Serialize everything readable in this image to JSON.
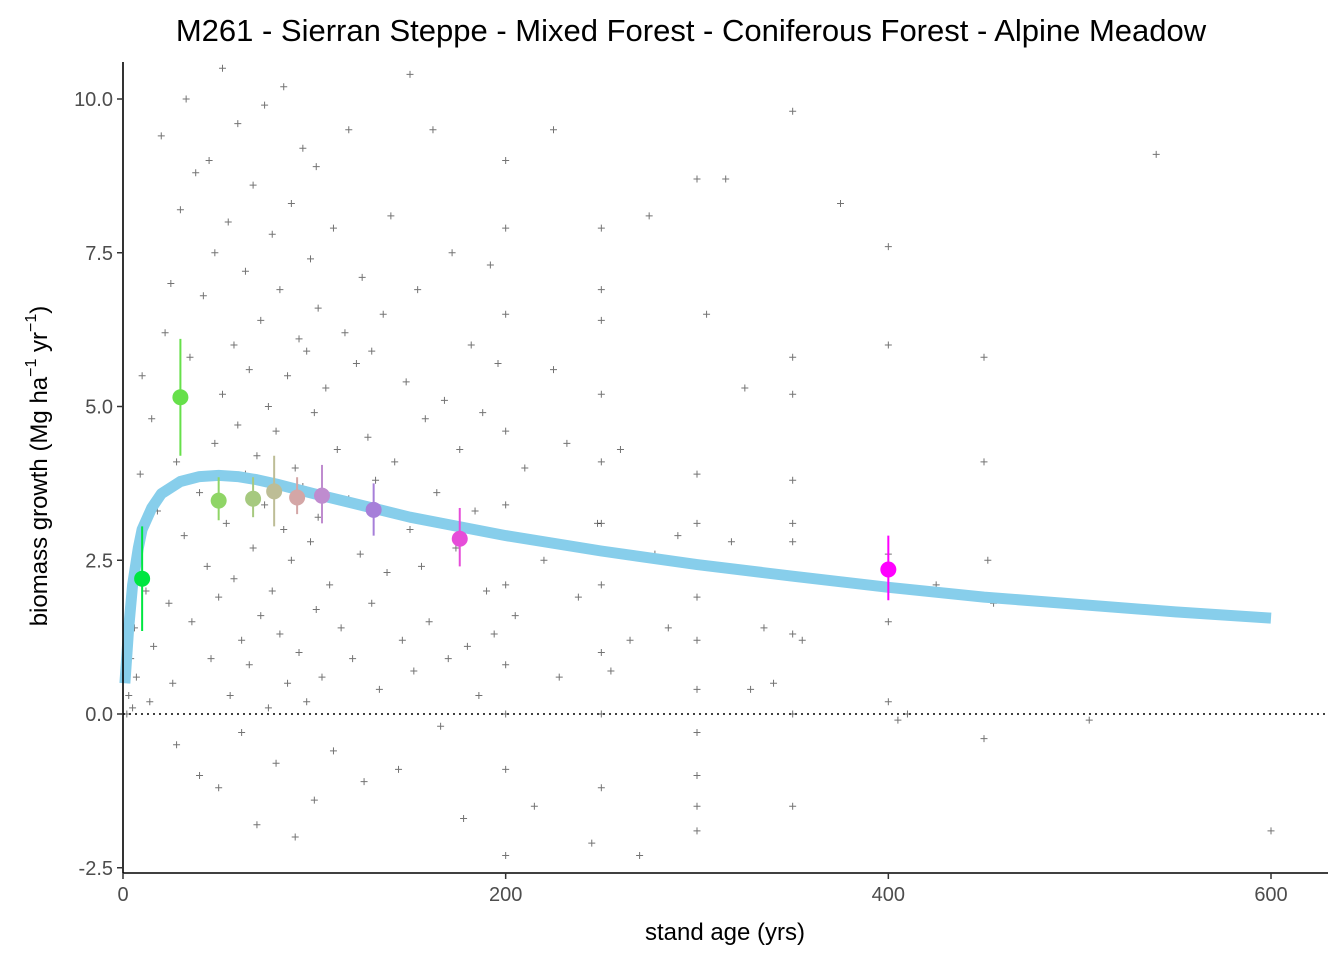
{
  "chart_data": {
    "type": "scatter",
    "title": "M261 - Sierran Steppe - Mixed Forest - Coniferous Forest - Alpine Meadow",
    "xlabel": "stand age (yrs)",
    "ylabel": {
      "main": "biomass growth (Mg ha",
      "sup1": "−1",
      "mid": " yr",
      "sup2": "−1",
      "end": ")"
    },
    "xlim": [
      0,
      630
    ],
    "ylim": [
      -2.6,
      10.6
    ],
    "x_ticks": [
      0,
      200,
      400,
      600
    ],
    "x_tick_labels": [
      "0",
      "200",
      "400",
      "600"
    ],
    "y_ticks": [
      -2.5,
      0,
      2.5,
      5,
      7.5,
      10
    ],
    "y_tick_labels": [
      "-2.5",
      "0.0",
      "2.5",
      "5.0",
      "7.5",
      "10.0"
    ],
    "grid": false,
    "reference_line": {
      "y": 0,
      "style": "dotted",
      "color": "#000000"
    },
    "fitted_curve": {
      "color": "#87ceeb",
      "points": [
        [
          1,
          0.5
        ],
        [
          3,
          1.4
        ],
        [
          5,
          2.1
        ],
        [
          8,
          2.7
        ],
        [
          10,
          3.0
        ],
        [
          15,
          3.35
        ],
        [
          20,
          3.58
        ],
        [
          30,
          3.78
        ],
        [
          40,
          3.86
        ],
        [
          50,
          3.88
        ],
        [
          60,
          3.86
        ],
        [
          70,
          3.81
        ],
        [
          80,
          3.74
        ],
        [
          100,
          3.58
        ],
        [
          120,
          3.43
        ],
        [
          150,
          3.2
        ],
        [
          200,
          2.9
        ],
        [
          250,
          2.65
        ],
        [
          300,
          2.43
        ],
        [
          350,
          2.24
        ],
        [
          400,
          2.06
        ],
        [
          450,
          1.9
        ],
        [
          500,
          1.78
        ],
        [
          550,
          1.66
        ],
        [
          600,
          1.56
        ]
      ]
    },
    "binned_means": [
      {
        "x": 10,
        "y": 2.2,
        "ylo": 1.35,
        "yhi": 3.05,
        "color": "#00e640"
      },
      {
        "x": 30,
        "y": 5.15,
        "ylo": 4.2,
        "yhi": 6.1,
        "color": "#66e04a"
      },
      {
        "x": 50,
        "y": 3.47,
        "ylo": 3.15,
        "yhi": 3.85,
        "color": "#8fd566"
      },
      {
        "x": 68,
        "y": 3.5,
        "ylo": 3.2,
        "yhi": 3.85,
        "color": "#a6c97f"
      },
      {
        "x": 79,
        "y": 3.62,
        "ylo": 3.05,
        "yhi": 4.2,
        "color": "#bdbd96"
      },
      {
        "x": 91,
        "y": 3.52,
        "ylo": 3.25,
        "yhi": 3.85,
        "color": "#d4a6a6"
      },
      {
        "x": 104,
        "y": 3.55,
        "ylo": 3.1,
        "yhi": 4.05,
        "color": "#bf8ccf"
      },
      {
        "x": 131,
        "y": 3.32,
        "ylo": 2.9,
        "yhi": 3.75,
        "color": "#a67fd9"
      },
      {
        "x": 176,
        "y": 2.85,
        "ylo": 2.4,
        "yhi": 3.35,
        "color": "#e64dd9"
      },
      {
        "x": 400,
        "y": 2.35,
        "ylo": 1.85,
        "yhi": 2.9,
        "color": "#ff00ff"
      }
    ],
    "raw_points_note": "",
    "raw_points": [
      [
        2,
        0.0
      ],
      [
        3,
        0.3
      ],
      [
        4,
        0.9
      ],
      [
        5,
        0.1
      ],
      [
        6,
        1.4
      ],
      [
        7,
        0.6
      ],
      [
        8,
        2.5
      ],
      [
        9,
        3.9
      ],
      [
        10,
        5.5
      ],
      [
        12,
        2.0
      ],
      [
        14,
        0.2
      ],
      [
        15,
        4.8
      ],
      [
        16,
        1.1
      ],
      [
        18,
        3.3
      ],
      [
        20,
        9.4
      ],
      [
        22,
        6.2
      ],
      [
        24,
        1.8
      ],
      [
        25,
        7.0
      ],
      [
        26,
        0.5
      ],
      [
        28,
        4.1
      ],
      [
        28,
        -0.5
      ],
      [
        30,
        8.2
      ],
      [
        32,
        2.9
      ],
      [
        33,
        10.0
      ],
      [
        35,
        5.8
      ],
      [
        36,
        1.5
      ],
      [
        38,
        8.8
      ],
      [
        40,
        3.6
      ],
      [
        40,
        -1.0
      ],
      [
        42,
        6.8
      ],
      [
        44,
        2.4
      ],
      [
        45,
        9.0
      ],
      [
        46,
        0.9
      ],
      [
        48,
        4.4
      ],
      [
        48,
        7.5
      ],
      [
        50,
        1.9
      ],
      [
        50,
        -1.2
      ],
      [
        52,
        5.2
      ],
      [
        52,
        10.5
      ],
      [
        54,
        3.1
      ],
      [
        55,
        8.0
      ],
      [
        56,
        0.3
      ],
      [
        58,
        6.0
      ],
      [
        58,
        2.2
      ],
      [
        60,
        4.7
      ],
      [
        60,
        9.6
      ],
      [
        62,
        1.2
      ],
      [
        62,
        -0.3
      ],
      [
        64,
        7.2
      ],
      [
        64,
        3.9
      ],
      [
        66,
        5.6
      ],
      [
        66,
        0.8
      ],
      [
        68,
        2.7
      ],
      [
        68,
        8.6
      ],
      [
        70,
        4.2
      ],
      [
        70,
        -1.8
      ],
      [
        72,
        6.4
      ],
      [
        72,
        1.6
      ],
      [
        74,
        3.4
      ],
      [
        74,
        9.9
      ],
      [
        76,
        5.0
      ],
      [
        76,
        0.1
      ],
      [
        78,
        7.8
      ],
      [
        78,
        2.0
      ],
      [
        80,
        4.6
      ],
      [
        80,
        -0.8
      ],
      [
        82,
        6.9
      ],
      [
        82,
        1.3
      ],
      [
        84,
        3.0
      ],
      [
        84,
        10.2
      ],
      [
        86,
        5.5
      ],
      [
        86,
        0.5
      ],
      [
        88,
        8.3
      ],
      [
        88,
        2.5
      ],
      [
        90,
        4.0
      ],
      [
        90,
        -2.0
      ],
      [
        92,
        6.1
      ],
      [
        92,
        1.0
      ],
      [
        94,
        3.7
      ],
      [
        94,
        9.2
      ],
      [
        96,
        5.9
      ],
      [
        96,
        0.2
      ],
      [
        98,
        7.4
      ],
      [
        98,
        2.8
      ],
      [
        100,
        4.9
      ],
      [
        100,
        -1.4
      ],
      [
        101,
        1.7
      ],
      [
        101,
        8.9
      ],
      [
        102,
        3.2
      ],
      [
        102,
        6.6
      ],
      [
        104,
        0.6
      ],
      [
        106,
        5.3
      ],
      [
        108,
        2.1
      ],
      [
        110,
        7.9
      ],
      [
        110,
        -0.6
      ],
      [
        112,
        4.3
      ],
      [
        114,
        1.4
      ],
      [
        116,
        6.2
      ],
      [
        118,
        3.5
      ],
      [
        118,
        9.5
      ],
      [
        120,
        0.9
      ],
      [
        122,
        5.7
      ],
      [
        124,
        2.6
      ],
      [
        125,
        7.1
      ],
      [
        126,
        -1.1
      ],
      [
        128,
        4.5
      ],
      [
        130,
        1.8
      ],
      [
        130,
        5.9
      ],
      [
        132,
        3.8
      ],
      [
        134,
        0.4
      ],
      [
        136,
        6.5
      ],
      [
        138,
        2.3
      ],
      [
        140,
        8.1
      ],
      [
        142,
        4.1
      ],
      [
        144,
        -0.9
      ],
      [
        146,
        1.2
      ],
      [
        148,
        5.4
      ],
      [
        150,
        10.4
      ],
      [
        150,
        3.0
      ],
      [
        152,
        0.7
      ],
      [
        154,
        6.9
      ],
      [
        156,
        2.4
      ],
      [
        158,
        4.8
      ],
      [
        160,
        1.5
      ],
      [
        162,
        9.5
      ],
      [
        164,
        3.6
      ],
      [
        166,
        -0.2
      ],
      [
        168,
        5.1
      ],
      [
        170,
        0.9
      ],
      [
        172,
        7.5
      ],
      [
        174,
        2.7
      ],
      [
        176,
        4.3
      ],
      [
        178,
        -1.7
      ],
      [
        180,
        1.1
      ],
      [
        182,
        6.0
      ],
      [
        184,
        3.3
      ],
      [
        186,
        0.3
      ],
      [
        188,
        4.9
      ],
      [
        190,
        2.0
      ],
      [
        192,
        7.3
      ],
      [
        194,
        1.3
      ],
      [
        196,
        5.7
      ],
      [
        198,
        2.9
      ],
      [
        200,
        9.0
      ],
      [
        200,
        7.9
      ],
      [
        200,
        6.5
      ],
      [
        200,
        4.6
      ],
      [
        200,
        3.4
      ],
      [
        200,
        2.1
      ],
      [
        200,
        0.8
      ],
      [
        200,
        0.0
      ],
      [
        200,
        -0.9
      ],
      [
        200,
        -2.3
      ],
      [
        205,
        1.6
      ],
      [
        210,
        4.0
      ],
      [
        215,
        -1.5
      ],
      [
        220,
        2.5
      ],
      [
        225,
        9.5
      ],
      [
        225,
        5.6
      ],
      [
        228,
        0.6
      ],
      [
        232,
        4.4
      ],
      [
        238,
        1.9
      ],
      [
        245,
        -2.1
      ],
      [
        248,
        3.1
      ],
      [
        250,
        7.9
      ],
      [
        250,
        6.9
      ],
      [
        250,
        6.4
      ],
      [
        250,
        5.2
      ],
      [
        250,
        4.1
      ],
      [
        250,
        3.1
      ],
      [
        250,
        2.1
      ],
      [
        250,
        1.0
      ],
      [
        250,
        0.0
      ],
      [
        250,
        -1.2
      ],
      [
        255,
        0.7
      ],
      [
        260,
        4.3
      ],
      [
        265,
        1.2
      ],
      [
        270,
        -2.3
      ],
      [
        275,
        8.1
      ],
      [
        278,
        2.6
      ],
      [
        285,
        1.4
      ],
      [
        290,
        2.9
      ],
      [
        300,
        8.7
      ],
      [
        300,
        3.9
      ],
      [
        300,
        3.1
      ],
      [
        300,
        1.9
      ],
      [
        300,
        1.2
      ],
      [
        300,
        0.4
      ],
      [
        300,
        -0.3
      ],
      [
        300,
        -1.0
      ],
      [
        300,
        -1.5
      ],
      [
        300,
        -1.9
      ],
      [
        305,
        6.5
      ],
      [
        315,
        8.7
      ],
      [
        318,
        2.8
      ],
      [
        325,
        5.3
      ],
      [
        328,
        0.4
      ],
      [
        335,
        1.4
      ],
      [
        340,
        0.5
      ],
      [
        350,
        9.8
      ],
      [
        350,
        5.8
      ],
      [
        350,
        5.2
      ],
      [
        350,
        3.8
      ],
      [
        350,
        3.1
      ],
      [
        350,
        2.8
      ],
      [
        350,
        1.3
      ],
      [
        350,
        0.0
      ],
      [
        350,
        -1.5
      ],
      [
        355,
        1.2
      ],
      [
        360,
        2.2
      ],
      [
        375,
        8.3
      ],
      [
        400,
        7.6
      ],
      [
        400,
        6.0
      ],
      [
        400,
        2.6
      ],
      [
        400,
        1.5
      ],
      [
        400,
        0.2
      ],
      [
        405,
        -0.1
      ],
      [
        410,
        0.0
      ],
      [
        425,
        2.1
      ],
      [
        450,
        5.8
      ],
      [
        450,
        4.1
      ],
      [
        450,
        -0.4
      ],
      [
        452,
        2.5
      ],
      [
        455,
        1.8
      ],
      [
        505,
        -0.1
      ],
      [
        540,
        9.1
      ],
      [
        600,
        -1.9
      ]
    ]
  }
}
